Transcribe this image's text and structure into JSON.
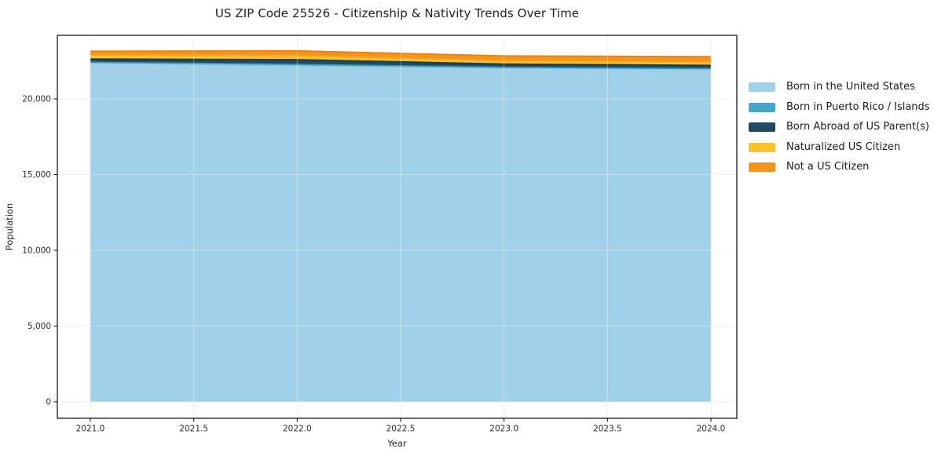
{
  "figure": {
    "title": "US ZIP Code 25526 - Citizenship & Nativity Trends Over Time",
    "xlabel": "Year",
    "ylabel": "Population"
  },
  "chart_data": {
    "type": "area",
    "stacked": true,
    "title": "US ZIP Code 25526 - Citizenship & Nativity Trends Over Time",
    "xlabel": "Year",
    "ylabel": "Population",
    "x": [
      2021,
      2022,
      2023,
      2024
    ],
    "series": [
      {
        "name": "Born in the United States",
        "values": [
          22370,
          22180,
          22030,
          21930
        ],
        "fill": "#a0d1e8",
        "edge": "#8cc3dc"
      },
      {
        "name": "Born in Puerto Rico / Islands",
        "values": [
          50,
          100,
          60,
          70
        ],
        "fill": "#45a8c8",
        "edge": "#3a96b4"
      },
      {
        "name": "Born Abroad of US Parent(s)",
        "values": [
          210,
          310,
          210,
          210
        ],
        "fill": "#1f4a5f",
        "edge": "#17394a"
      },
      {
        "name": "Naturalized US Citizen",
        "values": [
          260,
          260,
          210,
          210
        ],
        "fill": "#fcc22e",
        "edge": "#f1ae18"
      },
      {
        "name": "Not a US Citizen",
        "values": [
          260,
          320,
          330,
          365
        ],
        "fill": "#f6931e",
        "edge": "#e67f0e"
      }
    ],
    "x_ticks": [
      {
        "v": 2021.0,
        "label": "2021.0"
      },
      {
        "v": 2021.5,
        "label": "2021.5"
      },
      {
        "v": 2022.0,
        "label": "2022.0"
      },
      {
        "v": 2022.5,
        "label": "2022.5"
      },
      {
        "v": 2023.0,
        "label": "2023.0"
      },
      {
        "v": 2023.5,
        "label": "2023.5"
      },
      {
        "v": 2024.0,
        "label": "2024.0"
      }
    ],
    "y_ticks": [
      {
        "v": 0,
        "label": "0"
      },
      {
        "v": 5000,
        "label": "5,000"
      },
      {
        "v": 10000,
        "label": "10,000"
      },
      {
        "v": 15000,
        "label": "15,000"
      },
      {
        "v": 20000,
        "label": "20,000"
      }
    ],
    "xlim": [
      2020.84,
      2024.13
    ],
    "ylim": [
      -1090,
      24190
    ],
    "grid": true,
    "legend_position": "right-outside"
  }
}
